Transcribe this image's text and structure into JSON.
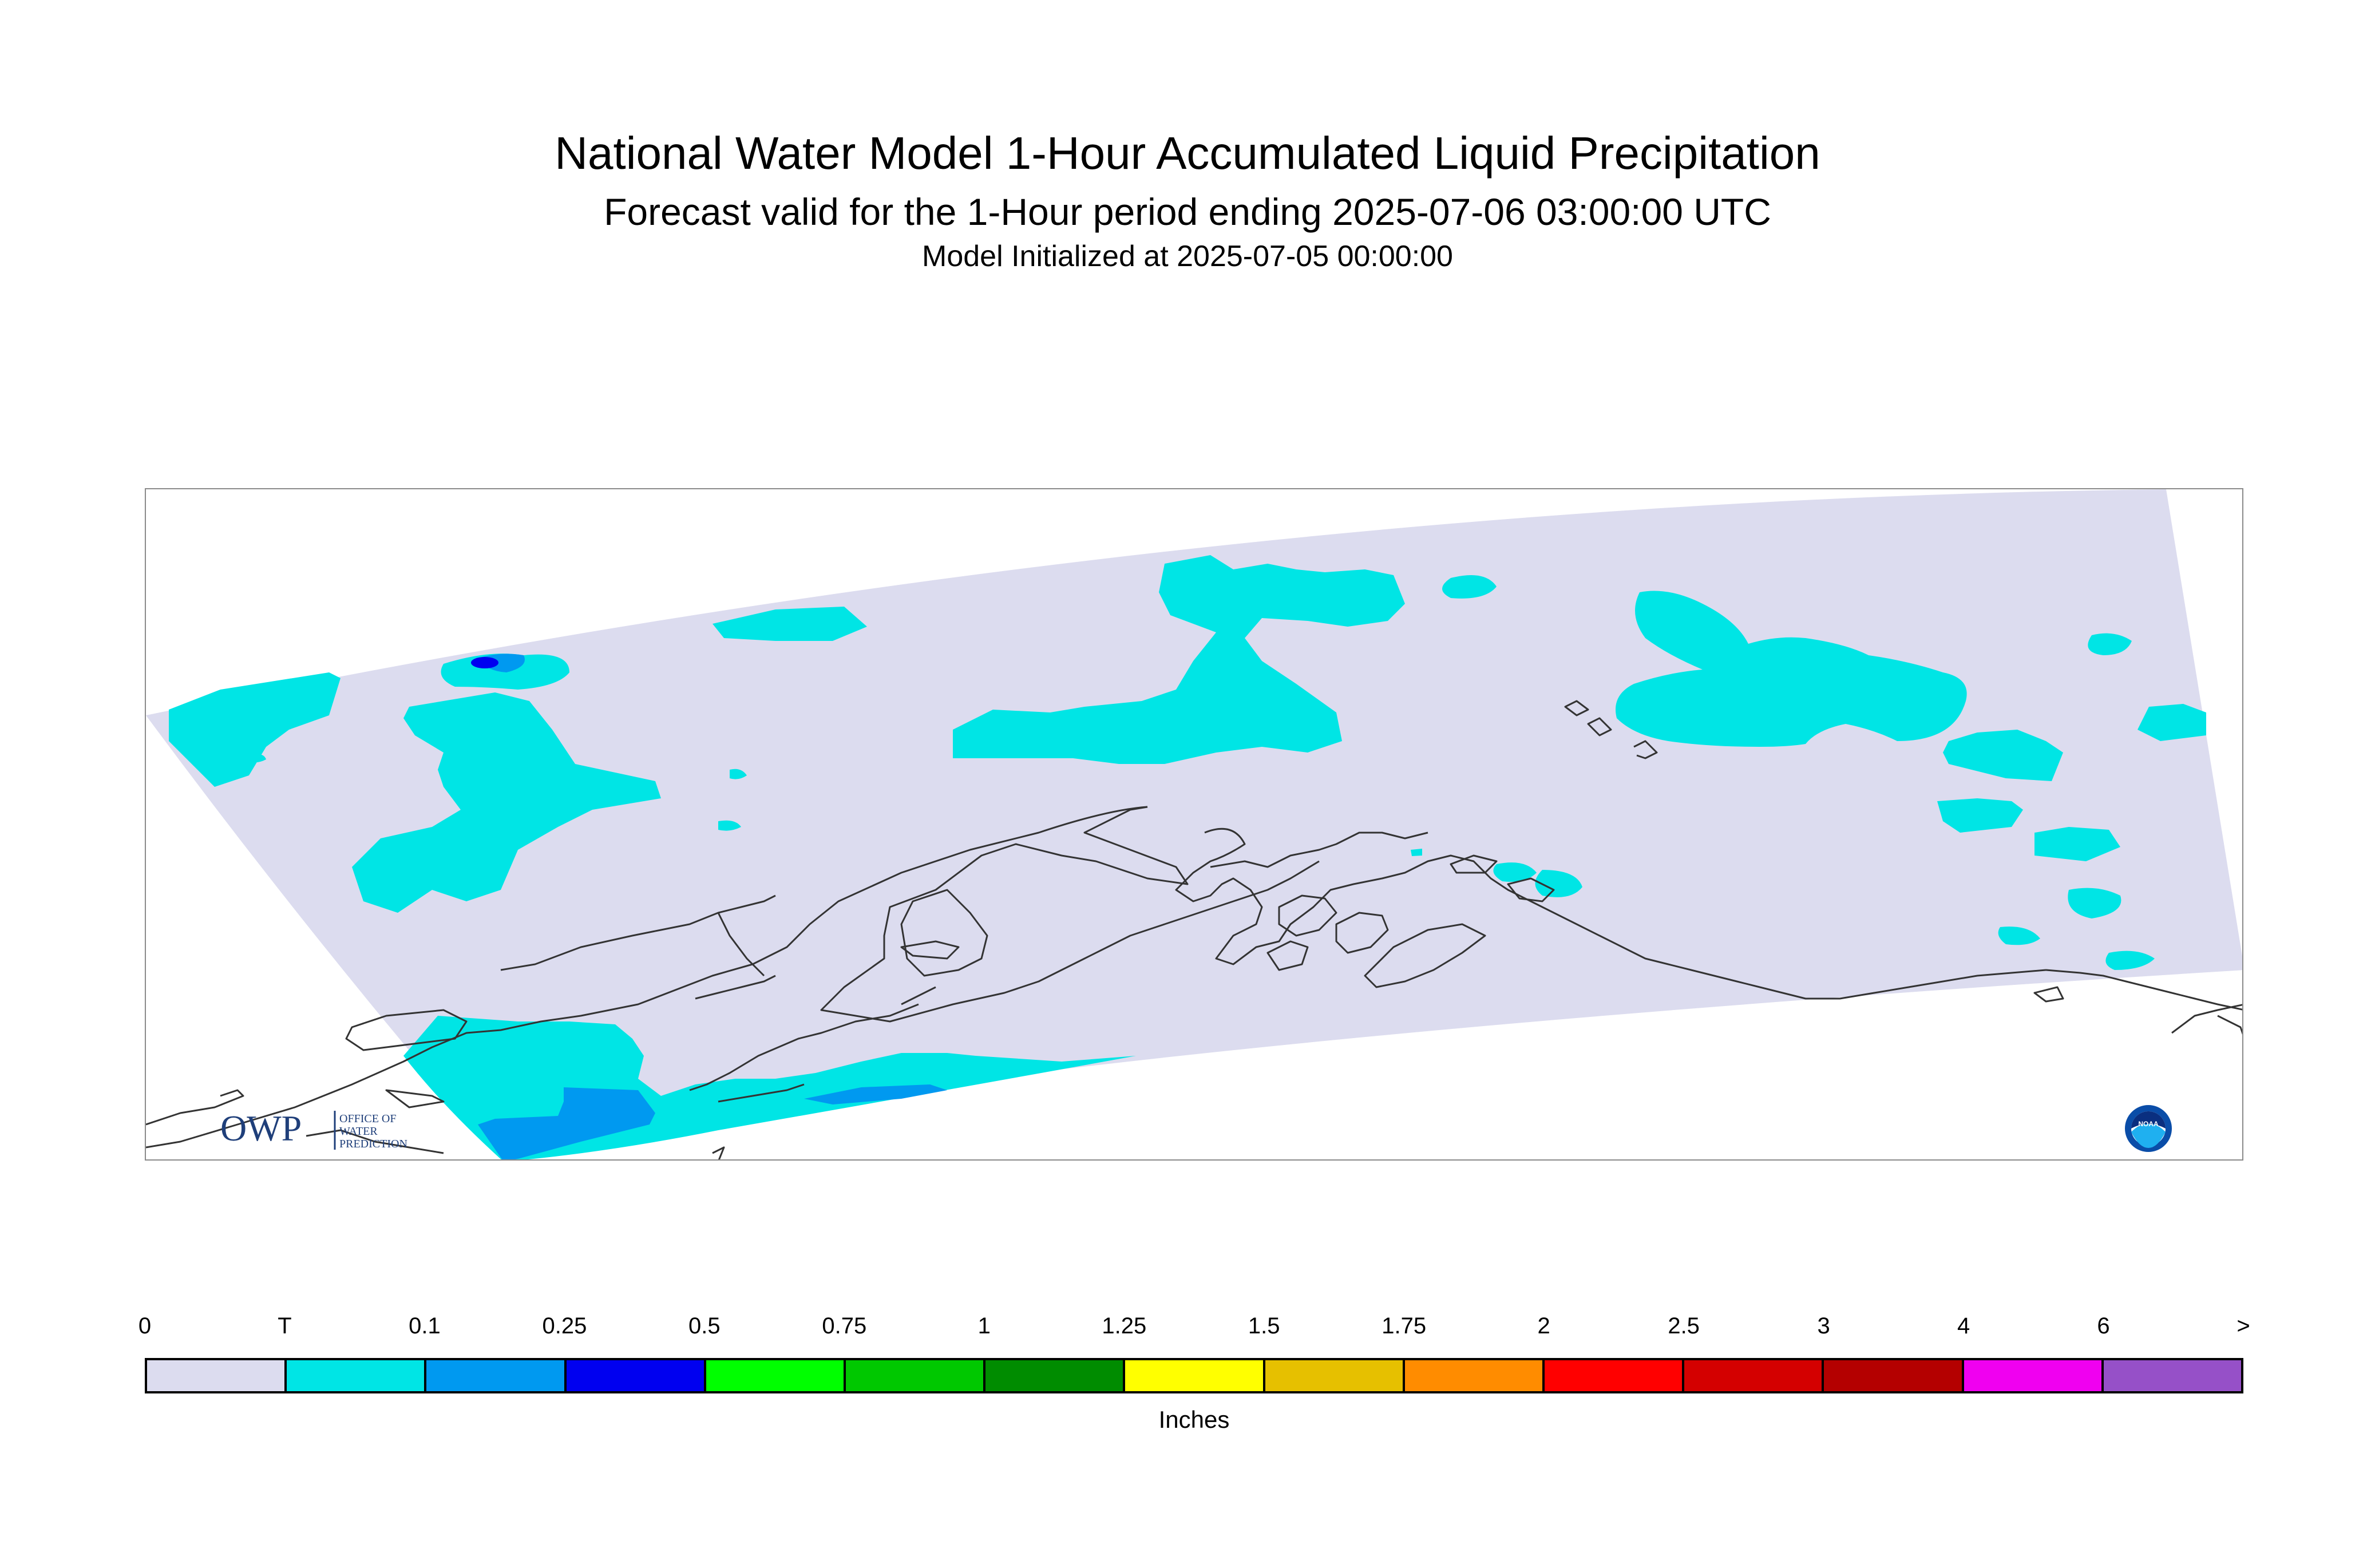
{
  "header": {
    "title": "National Water Model 1-Hour Accumulated Liquid Precipitation",
    "subtitle": "Forecast valid for the 1-Hour period ending 2025-07-06 03:00:00 UTC",
    "init": "Model Initialized at 2025-07-05 00:00:00"
  },
  "logos": {
    "owp_mark": "OWP",
    "owp_line1": "OFFICE OF",
    "owp_line2": "WATER",
    "owp_line3": "PREDICTION",
    "noaa_text": "NOAA"
  },
  "map": {
    "domain_color": "#dcdcef",
    "coast_color": "#333333"
  },
  "legend": {
    "ticks": [
      "0",
      "T",
      "0.1",
      "0.25",
      "0.5",
      "0.75",
      "1",
      "1.25",
      "1.5",
      "1.75",
      "2",
      "2.5",
      "3",
      "4",
      "6",
      ">"
    ],
    "colors": [
      "#dcdcef",
      "#00e5e5",
      "#0099f0",
      "#0000f0",
      "#00ff00",
      "#00c800",
      "#008c00",
      "#ffff00",
      "#e6c000",
      "#ff8c00",
      "#ff0000",
      "#d40000",
      "#b40000",
      "#f000f0",
      "#9650c8"
    ],
    "units": "Inches"
  }
}
